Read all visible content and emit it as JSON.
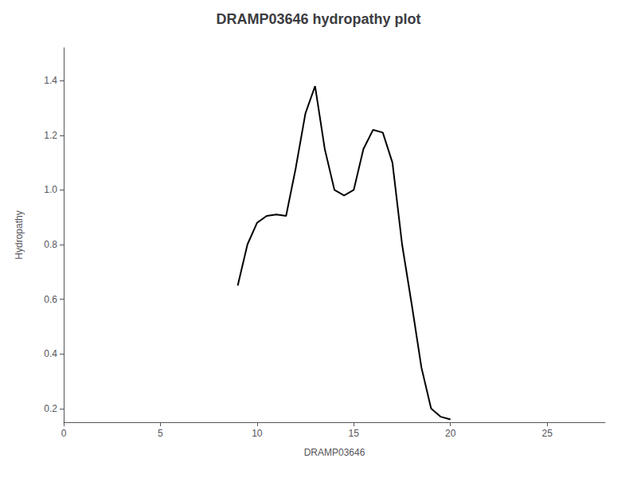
{
  "chart_data": {
    "type": "line",
    "title": "DRAMP03646 hydropathy plot",
    "xlabel": "DRAMP03646",
    "ylabel": "Hydropathy",
    "x": [
      9.0,
      9.5,
      10.0,
      10.5,
      11.0,
      11.5,
      12.0,
      12.5,
      13.0,
      13.5,
      14.0,
      14.5,
      15.0,
      15.5,
      16.0,
      16.5,
      17.0,
      17.5,
      18.0,
      18.5,
      19.0,
      19.5,
      20.0
    ],
    "values": [
      0.65,
      0.8,
      0.88,
      0.905,
      0.91,
      0.905,
      1.08,
      1.28,
      1.38,
      1.15,
      1.0,
      0.98,
      1.0,
      1.15,
      1.22,
      1.21,
      1.1,
      0.8,
      0.58,
      0.35,
      0.2,
      0.17,
      0.16
    ],
    "color": "#000000",
    "xlim": [
      0,
      28
    ],
    "xticks": [
      0,
      5,
      10,
      15,
      20,
      25
    ],
    "ylim": [
      0.15,
      1.52
    ],
    "yticks": [
      0.2,
      0.4,
      0.6,
      0.8,
      {
        "value": 1.0,
        "label": "1.0"
      },
      1.2,
      1.4
    ],
    "grid": false
  }
}
